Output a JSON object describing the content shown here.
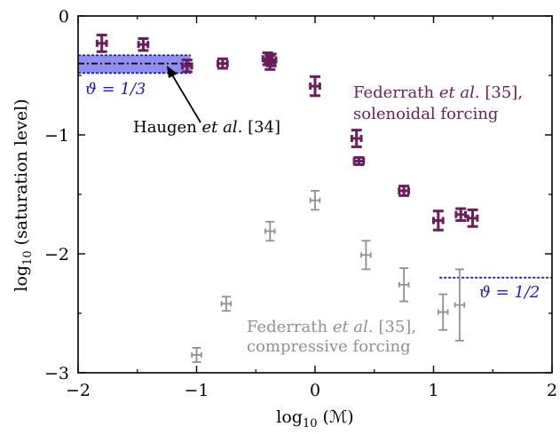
{
  "chart_data": {
    "type": "scatter",
    "xlabel_prefix": "log",
    "xlabel_sub": "10",
    "xlabel_arg": " (ℳ)",
    "ylabel_prefix": "log",
    "ylabel_sub": "10",
    "ylabel_arg": " (saturation level)",
    "xlim": [
      -2,
      2
    ],
    "ylim": [
      -3,
      0
    ],
    "x_ticks": [
      {
        "value": -2,
        "label": "−2"
      },
      {
        "value": -1,
        "label": "−1"
      },
      {
        "value": 0,
        "label": "0"
      },
      {
        "value": 1,
        "label": "1"
      },
      {
        "value": 2,
        "label": "2"
      }
    ],
    "y_ticks": [
      {
        "value": 0,
        "label": "0"
      },
      {
        "value": -1,
        "label": "−1"
      },
      {
        "value": -2,
        "label": "−2"
      },
      {
        "value": -3,
        "label": "−3"
      }
    ],
    "grid": false,
    "series": [
      {
        "color": "#6b1d5c",
        "points": [
          {
            "x": -1.8,
            "y": -0.23,
            "yerr": 0.07,
            "xerr": 0.04
          },
          {
            "x": -1.45,
            "y": -0.24,
            "yerr": 0.05,
            "xerr": 0.04
          },
          {
            "x": -1.08,
            "y": -0.42,
            "yerr": 0.05,
            "xerr": 0.04
          },
          {
            "x": -0.78,
            "y": -0.4,
            "yerr": 0.04,
            "xerr": 0.04
          },
          {
            "x": -0.4,
            "y": -0.36,
            "yerr": 0.05,
            "xerr": 0.04
          },
          {
            "x": -0.38,
            "y": -0.39,
            "yerr": 0.06,
            "xerr": 0.04
          },
          {
            "x": -0.37,
            "y": -0.37,
            "yerr": 0.05,
            "xerr": 0.04
          },
          {
            "x": 0.0,
            "y": -0.59,
            "yerr": 0.08,
            "xerr": 0.04
          },
          {
            "x": 0.35,
            "y": -1.03,
            "yerr": 0.07,
            "xerr": 0.04
          },
          {
            "x": 0.37,
            "y": -1.22,
            "yerr": 0.03,
            "xerr": 0.04
          },
          {
            "x": 0.75,
            "y": -1.47,
            "yerr": 0.04,
            "xerr": 0.04
          },
          {
            "x": 1.04,
            "y": -1.72,
            "yerr": 0.08,
            "xerr": 0.04
          },
          {
            "x": 1.23,
            "y": -1.67,
            "yerr": 0.05,
            "xerr": 0.04
          },
          {
            "x": 1.33,
            "y": -1.7,
            "yerr": 0.07,
            "xerr": 0.04
          }
        ]
      },
      {
        "color": "#909090",
        "points": [
          {
            "x": -1.0,
            "y": -2.85,
            "yerr": 0.06,
            "xerr": 0.04
          },
          {
            "x": -0.75,
            "y": -2.42,
            "yerr": 0.06,
            "xerr": 0.04
          },
          {
            "x": -0.38,
            "y": -1.81,
            "yerr": 0.08,
            "xerr": 0.04
          },
          {
            "x": 0.0,
            "y": -1.55,
            "yerr": 0.08,
            "xerr": 0.04
          },
          {
            "x": 0.43,
            "y": -2.01,
            "yerr": 0.12,
            "xerr": 0.04
          },
          {
            "x": 0.75,
            "y": -2.26,
            "yerr": 0.14,
            "xerr": 0.04
          },
          {
            "x": 1.08,
            "y": -2.49,
            "yerr": 0.15,
            "xerr": 0.04
          },
          {
            "x": 1.22,
            "y": -2.43,
            "yerr": 0.3,
            "xerr": 0.04
          }
        ]
      }
    ],
    "bands": [
      {
        "xmin": -2.0,
        "xmax": -1.05,
        "center": -0.4,
        "low": -0.48,
        "high": -0.33,
        "fill": "#8f8ff0",
        "line": "#1a1acc"
      }
    ],
    "hlines": [
      {
        "xmin": 1.05,
        "xmax": 2.0,
        "y": -2.2,
        "color": "#1a1acc"
      }
    ],
    "reference_line": {
      "xmin": -2.0,
      "xmax": -1.05,
      "y": -0.4
    },
    "annotations": {
      "theta13": {
        "text": "ϑ = 1/3",
        "color": "#1a1acc"
      },
      "theta12": {
        "text": "ϑ = 1/2",
        "color": "#1a1acc"
      },
      "haugen": {
        "prefix": "Haugen ",
        "etal": "et al.",
        "suffix": " [34]",
        "color": "#000000"
      },
      "fed_sol_1": {
        "prefix": "Federrath ",
        "etal": "et al.",
        "suffix": " [35],",
        "color": "#6b1d5c"
      },
      "fed_sol_2": {
        "text": "solenoidal forcing",
        "color": "#6b1d5c"
      },
      "fed_comp_1": {
        "prefix": "Federrath ",
        "etal": "et al.",
        "suffix": " [35],",
        "color": "#909090"
      },
      "fed_comp_2": {
        "text": "compressive forcing",
        "color": "#909090"
      }
    }
  }
}
